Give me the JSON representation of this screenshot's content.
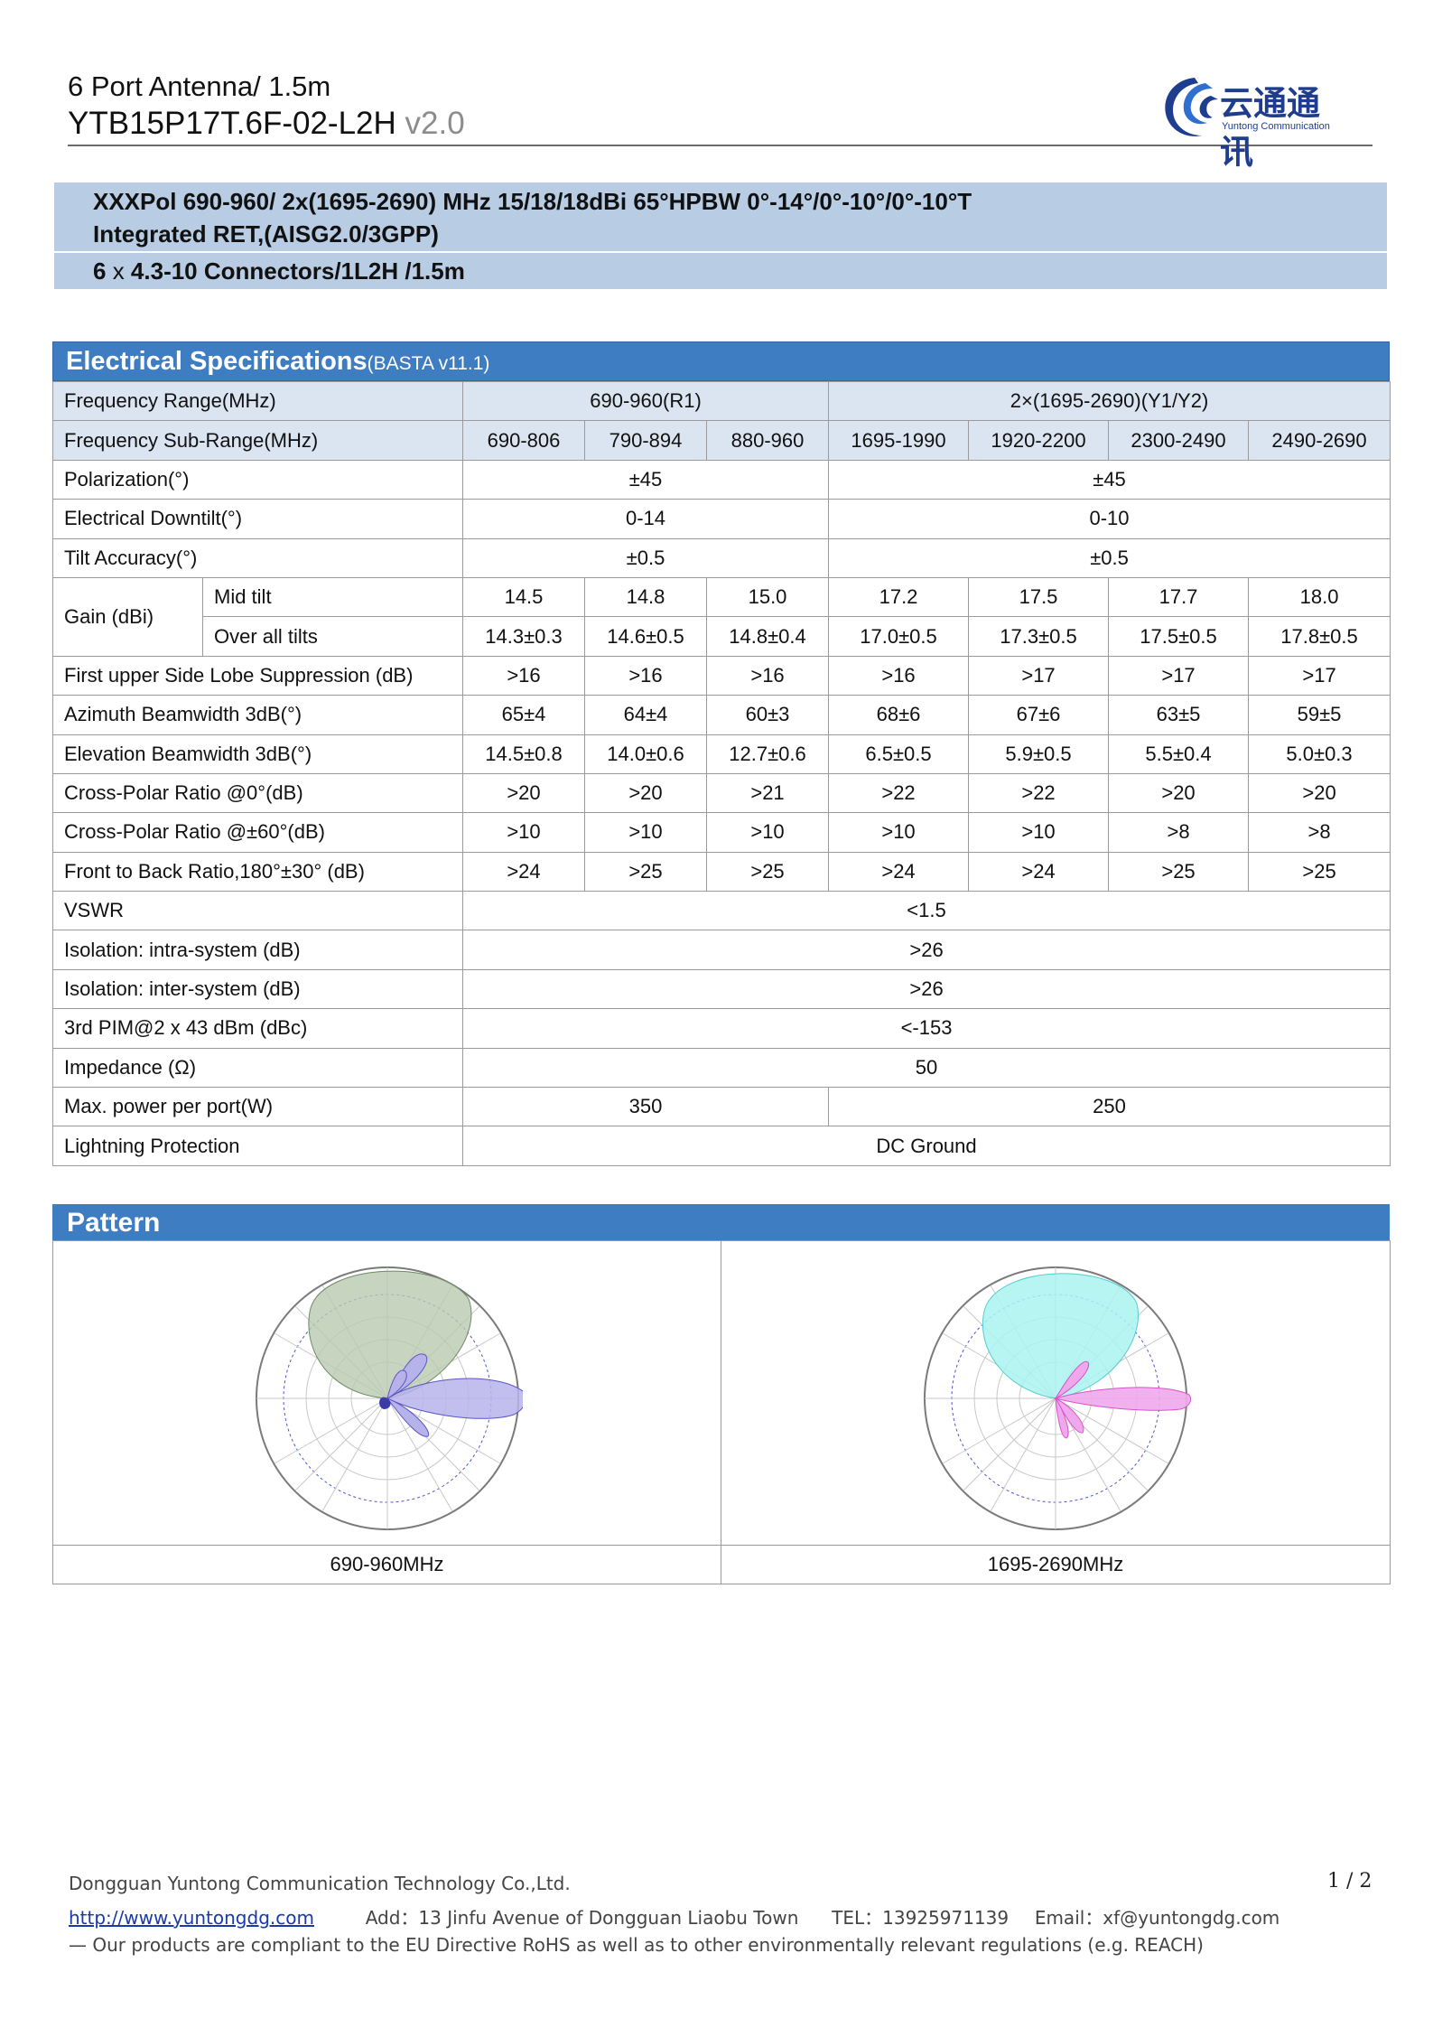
{
  "header": {
    "title_line1": "6 Port Antenna/ 1.5m",
    "model": "YTB15P17T.6F-02-L2H",
    "version": "v2.0",
    "logo_cn": "云通通讯",
    "logo_en": "Yuntong Communication"
  },
  "summary": {
    "line1": "XXXPol 690-960/ 2x(1695-2690) MHz 15/18/18dBi 65°HPBW 0°-14°/0°-10°/0°-10°T",
    "line2": "Integrated RET,(AISG2.0/3GPP)",
    "line3_pre": "6",
    "line3_x": " x ",
    "line3_post": "4.3-10 Connectors/1L2H /1.5m"
  },
  "spec": {
    "title": "Electrical Specifications",
    "title_suffix": "(BASTA v11.1)",
    "freq_range_label": "Frequency Range(MHz)",
    "freq_range_r1": "690-960(R1)",
    "freq_range_y": "2×(1695-2690)(Y1/Y2)",
    "sub_range_label": "Frequency Sub-Range(MHz)",
    "sub_ranges": [
      "690-806",
      "790-894",
      "880-960",
      "1695-1990",
      "1920-2200",
      "2300-2490",
      "2490-2690"
    ],
    "polarization_label": "Polarization(°)",
    "polarization_lb": "±45",
    "polarization_hb": "±45",
    "downtilt_label": "Electrical Downtilt(°)",
    "downtilt_lb": "0-14",
    "downtilt_hb": "0-10",
    "tilt_acc_label": "Tilt Accuracy(°)",
    "tilt_acc_lb": "±0.5",
    "tilt_acc_hb": "±0.5",
    "gain_label": "Gain (dBi)",
    "gain_mid_label": "Mid tilt",
    "gain_mid": [
      "14.5",
      "14.8",
      "15.0",
      "17.2",
      "17.5",
      "17.7",
      "18.0"
    ],
    "gain_all_label": "Over all tilts",
    "gain_all": [
      "14.3±0.3",
      "14.6±0.5",
      "14.8±0.4",
      "17.0±0.5",
      "17.3±0.5",
      "17.5±0.5",
      "17.8±0.5"
    ],
    "sidelobe_label": "First upper Side Lobe Suppression (dB)",
    "sidelobe": [
      ">16",
      ">16",
      ">16",
      ">16",
      ">17",
      ">17",
      ">17"
    ],
    "azimuth_label": "Azimuth Beamwidth 3dB(°)",
    "azimuth": [
      "65±4",
      "64±4",
      "60±3",
      "68±6",
      "67±6",
      "63±5",
      "59±5"
    ],
    "elevation_label": "Elevation Beamwidth 3dB(°)",
    "elevation": [
      "14.5±0.8",
      "14.0±0.6",
      "12.7±0.6",
      "6.5±0.5",
      "5.9±0.5",
      "5.5±0.4",
      "5.0±0.3"
    ],
    "xpol0_label": "Cross-Polar Ratio @0°(dB)",
    "xpol0": [
      ">20",
      ">20",
      ">21",
      ">22",
      ">22",
      ">20",
      ">20"
    ],
    "xpol60_label": "Cross-Polar Ratio @±60°(dB)",
    "xpol60": [
      ">10",
      ">10",
      ">10",
      ">10",
      ">10",
      ">8",
      ">8"
    ],
    "ftb_label": "Front to Back Ratio,180°±30° (dB)",
    "ftb": [
      ">24",
      ">25",
      ">25",
      ">24",
      ">24",
      ">25",
      ">25"
    ],
    "vswr_label": "VSWR",
    "vswr": "<1.5",
    "iso_intra_label": "Isolation: intra-system (dB)",
    "iso_intra": ">26",
    "iso_inter_label": "Isolation: inter-system (dB)",
    "iso_inter": ">26",
    "pim_label": "3rd PIM@2 x 43 dBm (dBc)",
    "pim": "<-153",
    "impedance_label": "Impedance (Ω)",
    "impedance": "50",
    "power_label": "Max. power per port(W)",
    "power_lb": "350",
    "power_hb": "250",
    "lightning_label": "Lightning Protection",
    "lightning": "DC Ground"
  },
  "pattern": {
    "title": "Pattern",
    "caption_lb": "690-960MHz",
    "caption_hb": "1695-2690MHz",
    "colors": {
      "lb_lobe": "#b8c9b0",
      "lb_side": "#b7b3ea",
      "hb_lobe": "#aaf3f0",
      "hb_side": "#f0a8ec"
    }
  },
  "footer": {
    "company": "Dongguan Yuntong Communication Technology Co.,Ltd.",
    "url": "http://www.yuntongdg.com",
    "address": "Add：13 Jinfu Avenue    of Dongguan Liaobu Town",
    "tel": "TEL：13925971139",
    "email_label": "Email",
    "email": "：xf@yuntongdg.com",
    "compliance": "— Our products are compliant to the EU Directive RoHS as well as to other environmentally relevant regulations (e.g. REACH)",
    "page": "1 / 2"
  }
}
